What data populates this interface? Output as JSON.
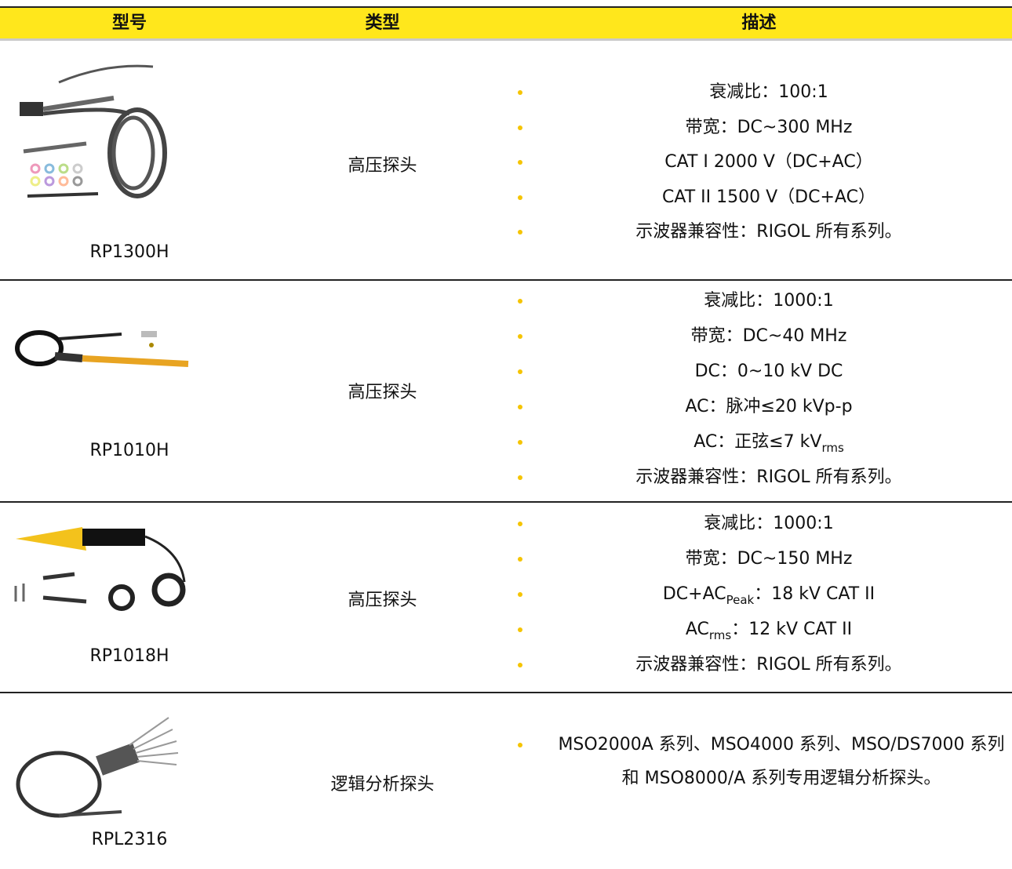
{
  "header": [
    "型号",
    "类型",
    "描述"
  ],
  "rows": [
    {
      "model": "RP1300H",
      "type": "高压探头",
      "description": [
        "衰减比：100:1",
        "带宽：DC~300 MHz",
        "CAT I 2000 V（DC+AC）",
        "CAT II 1500 V（DC+AC）",
        "示波器兼容性：RIGOL 所有系列。"
      ]
    },
    {
      "model": "RP1010H",
      "type": "高压探头",
      "description": [
        "衰减比：1000:1",
        "带宽：DC~40 MHz",
        "DC：0~10 kV DC",
        "AC：脉冲≤20 kVp-p",
        {
          "text": "AC：正弦≤7 kV",
          "sub": "rms"
        },
        "示波器兼容性：RIGOL 所有系列。"
      ]
    },
    {
      "model": "RP1018H",
      "type": "高压探头",
      "description": [
        "衰减比：1000:1",
        "带宽：DC~150 MHz",
        {
          "text": "DC+AC",
          "sub": "Peak",
          "tail": "：18 kV CAT II"
        },
        {
          "text": "AC",
          "sub": "rms",
          "tail": "：12 kV CAT II"
        },
        "示波器兼容性：RIGOL 所有系列。"
      ]
    },
    {
      "model": "RPL2316",
      "type": "逻辑分析探头",
      "description": [
        "MSO2000A 系列、MSO4000 系列、MSO/DS7000 系列和 MSO8000/A 系列专用逻辑分析探头。"
      ]
    }
  ]
}
